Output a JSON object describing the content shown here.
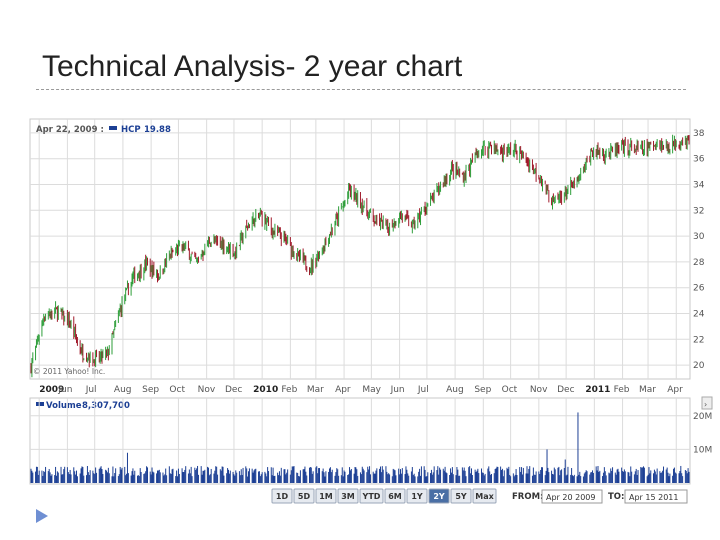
{
  "slide": {
    "title": "Technical Analysis- 2 year chart"
  },
  "quote_header": {
    "date": "Apr 22, 2009 :",
    "symbol": "HCP",
    "price": "19.88"
  },
  "volume_header": {
    "label": "Volume",
    "value": "8,307,700"
  },
  "copyright": "© 2011 Yahoo! Inc.",
  "colors": {
    "up": "#2e9e3a",
    "down": "#a0192a",
    "grid": "#dcdcdc",
    "legend_blue": "#1c3f94",
    "selected_range": "#4a6fa5"
  },
  "chart_data": {
    "type": "candlestick",
    "price_axis": {
      "ticks": [
        20,
        22,
        24,
        26,
        28,
        30,
        32,
        34,
        36,
        38
      ],
      "ylim": [
        19,
        39
      ]
    },
    "volume_axis": {
      "ticks": [
        "10M",
        "20M"
      ],
      "ylim": [
        0,
        25
      ]
    },
    "x_labels": [
      "2009",
      "Jun",
      "Jul",
      "Aug",
      "Sep",
      "Oct",
      "Nov",
      "Dec",
      "2010",
      "Feb",
      "Mar",
      "Apr",
      "May",
      "Jun",
      "Jul",
      "Aug",
      "Sep",
      "Oct",
      "Nov",
      "Dec",
      "2011",
      "Feb",
      "Mar",
      "Apr"
    ],
    "bold_x_labels": [
      "2009",
      "2010",
      "2011"
    ],
    "price_series": [
      [
        "2009-04-22",
        19.9
      ],
      [
        "2009-05-06",
        23.8
      ],
      [
        "2009-05-20",
        24.2
      ],
      [
        "2009-06-03",
        23.3
      ],
      [
        "2009-06-17",
        21.0
      ],
      [
        "2009-07-01",
        20.4
      ],
      [
        "2009-07-15",
        20.8
      ],
      [
        "2009-07-29",
        24.3
      ],
      [
        "2009-08-12",
        26.8
      ],
      [
        "2009-08-26",
        27.8
      ],
      [
        "2009-09-09",
        27.0
      ],
      [
        "2009-09-23",
        28.6
      ],
      [
        "2009-10-07",
        29.2
      ],
      [
        "2009-10-21",
        28.0
      ],
      [
        "2009-11-04",
        29.6
      ],
      [
        "2009-11-18",
        29.4
      ],
      [
        "2009-12-02",
        28.7
      ],
      [
        "2009-12-16",
        30.8
      ],
      [
        "2009-12-30",
        31.6
      ],
      [
        "2010-01-13",
        30.4
      ],
      [
        "2010-01-27",
        29.6
      ],
      [
        "2010-02-10",
        28.3
      ],
      [
        "2010-02-24",
        27.6
      ],
      [
        "2010-03-10",
        29.4
      ],
      [
        "2010-03-24",
        31.3
      ],
      [
        "2010-04-07",
        33.5
      ],
      [
        "2010-04-21",
        32.4
      ],
      [
        "2010-05-05",
        31.2
      ],
      [
        "2010-05-19",
        30.7
      ],
      [
        "2010-06-02",
        31.6
      ],
      [
        "2010-06-16",
        30.8
      ],
      [
        "2010-06-30",
        32.2
      ],
      [
        "2010-07-14",
        33.6
      ],
      [
        "2010-07-28",
        35.1
      ],
      [
        "2010-08-11",
        34.6
      ],
      [
        "2010-08-25",
        36.4
      ],
      [
        "2010-09-08",
        37.0
      ],
      [
        "2010-09-22",
        36.5
      ],
      [
        "2010-10-06",
        36.7
      ],
      [
        "2010-10-20",
        35.8
      ],
      [
        "2010-11-03",
        34.5
      ],
      [
        "2010-11-17",
        32.6
      ],
      [
        "2010-12-01",
        33.4
      ],
      [
        "2010-12-15",
        34.3
      ],
      [
        "2010-12-29",
        36.6
      ],
      [
        "2011-01-12",
        36.4
      ],
      [
        "2011-01-26",
        36.6
      ],
      [
        "2011-02-09",
        36.9
      ],
      [
        "2011-02-23",
        36.6
      ],
      [
        "2011-03-09",
        37.2
      ],
      [
        "2011-03-23",
        36.9
      ],
      [
        "2011-04-06",
        37.5
      ],
      [
        "2011-04-15",
        37.3
      ]
    ],
    "volume_spikes": [
      {
        "date": "2009-08-06",
        "value": 9
      },
      {
        "date": "2010-04-29",
        "value": 5
      },
      {
        "date": "2010-11-10",
        "value": 10
      },
      {
        "date": "2010-11-30",
        "value": 7
      },
      {
        "date": "2010-12-14",
        "value": 21
      },
      {
        "date": "2010-12-18",
        "value": 6
      }
    ],
    "typical_volume": 3.5
  },
  "range_buttons": [
    {
      "label": "1D",
      "selected": false
    },
    {
      "label": "5D",
      "selected": false
    },
    {
      "label": "1M",
      "selected": false
    },
    {
      "label": "3M",
      "selected": false
    },
    {
      "label": "YTD",
      "selected": false
    },
    {
      "label": "6M",
      "selected": false
    },
    {
      "label": "1Y",
      "selected": false
    },
    {
      "label": "2Y",
      "selected": true
    },
    {
      "label": "5Y",
      "selected": false
    },
    {
      "label": "Max",
      "selected": false
    }
  ],
  "date_range": {
    "from_label": "FROM:",
    "from_value": "Apr 20 2009",
    "to_label": "TO:",
    "to_value": "Apr 15 2011"
  }
}
